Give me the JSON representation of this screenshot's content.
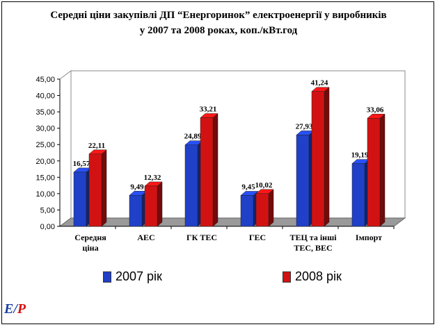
{
  "chart_data": {
    "type": "bar",
    "title_lines": [
      "Середні ціни закупівлі ДП “Енергоринок” електроенергії у виробників",
      "у 2007 та 2008 роках, коп./кВт.год"
    ],
    "categories": [
      [
        "Середня",
        "ціна"
      ],
      [
        "АЕС"
      ],
      [
        "ГК ТЕС"
      ],
      [
        "ГЕС"
      ],
      [
        "ТЕЦ та інші",
        "ТЕС, ВЕС"
      ],
      [
        "Імпорт"
      ]
    ],
    "series": [
      {
        "name": "2007 рік",
        "color": "#2040c8",
        "values": [
          16.57,
          9.49,
          24.89,
          9.45,
          27.93,
          19.19
        ],
        "labels": [
          "16,57",
          "9,49",
          "24,89",
          "9,45",
          "27,93",
          "19,19"
        ]
      },
      {
        "name": "2008 рік",
        "color": "#d21212",
        "values": [
          22.11,
          12.32,
          33.21,
          10.02,
          41.24,
          33.06
        ],
        "labels": [
          "22,11",
          "12,32",
          "33,21",
          "10,02",
          "41,24",
          "33,06"
        ]
      }
    ],
    "ylim": [
      0,
      45
    ],
    "yticks": [
      "0,00",
      "5,00",
      "10,00",
      "15,00",
      "20,00",
      "25,00",
      "30,00",
      "35,00",
      "40,00",
      "45,00"
    ],
    "grid": false,
    "legend_position": "bottom"
  },
  "logo_text": {
    "a": "Е",
    "b": "Р"
  }
}
